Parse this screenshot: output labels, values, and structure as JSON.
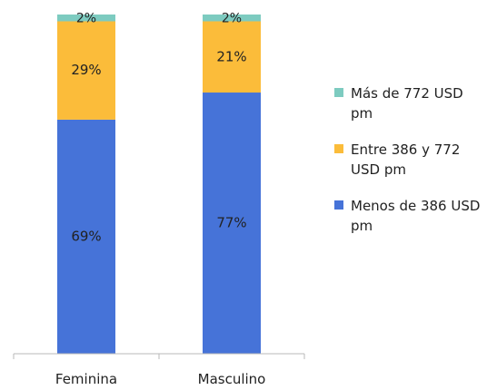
{
  "chart_data": {
    "type": "bar",
    "stacked": true,
    "categories": [
      "Feminina",
      "Masculino"
    ],
    "series": [
      {
        "name": "Menos de 386 USD pm",
        "values": [
          69,
          77
        ],
        "labels": [
          "69%",
          "77%"
        ],
        "color": "#4673d8"
      },
      {
        "name": "Entre 386 y 772 USD pm",
        "values": [
          29,
          21
        ],
        "labels": [
          "29%",
          "21%"
        ],
        "color": "#fbbc3a"
      },
      {
        "name": "Más de 772 USD pm",
        "values": [
          2,
          2
        ],
        "labels": [
          "2%",
          "2%"
        ],
        "color": "#7dcbc0"
      }
    ],
    "ylim": [
      0,
      100
    ],
    "unit": "%",
    "grid": false,
    "legend_position": "right"
  },
  "legend": {
    "items": [
      {
        "label": "Más de 772 USD pm",
        "color": "#7dcbc0"
      },
      {
        "label": "Entre 386 y 772 USD pm",
        "color": "#fbbc3a"
      },
      {
        "label": "Menos de 386 USD pm",
        "color": "#4673d8"
      }
    ]
  }
}
